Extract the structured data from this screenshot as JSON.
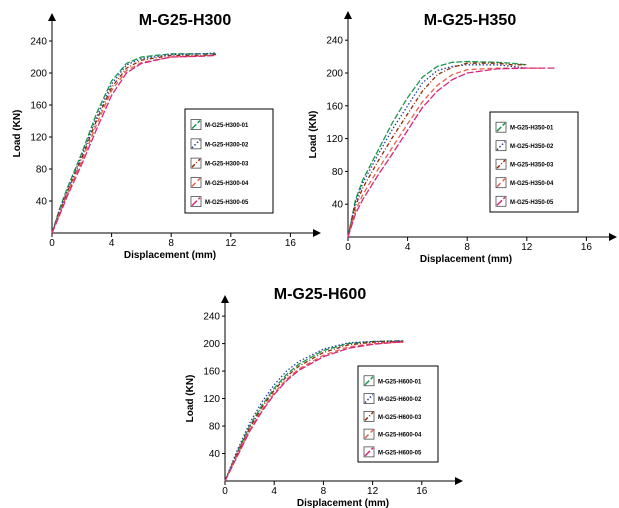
{
  "chart_data": [
    {
      "type": "line",
      "title": "M-G25-H300",
      "xlabel": "Displacement (mm)",
      "ylabel": "Load (KN)",
      "xlim": [
        0,
        17
      ],
      "ylim": [
        0,
        260
      ],
      "xticks": [
        "0",
        "4",
        "8",
        "12",
        "16"
      ],
      "yticks": [
        "40",
        "80",
        "120",
        "160",
        "200",
        "240"
      ],
      "legend": "inside-right",
      "series": [
        {
          "name": "M-G25-H300-01",
          "color": "#1a9850",
          "dash": "6 2",
          "x": [
            0,
            0.5,
            1,
            2,
            3,
            4,
            5,
            6,
            8,
            10,
            11
          ],
          "y": [
            0,
            30,
            55,
            100,
            150,
            190,
            212,
            220,
            224,
            224,
            224
          ]
        },
        {
          "name": "M-G25-H300-02",
          "color": "#2c3e9c",
          "dash": "1.5 2",
          "x": [
            0,
            0.5,
            1,
            2,
            3,
            4,
            5,
            6,
            8,
            10,
            11
          ],
          "y": [
            0,
            28,
            52,
            97,
            145,
            186,
            210,
            218,
            223,
            224,
            225
          ]
        },
        {
          "name": "M-G25-H300-03",
          "color": "#8c2d04",
          "dash": "4 2 1 2",
          "x": [
            0,
            0.5,
            1,
            2,
            3,
            4,
            5,
            6,
            8,
            10,
            11
          ],
          "y": [
            0,
            26,
            50,
            94,
            141,
            182,
            206,
            216,
            222,
            222,
            223
          ]
        },
        {
          "name": "M-G25-H300-04",
          "color": "#e8604c",
          "dash": "5 3",
          "x": [
            0,
            0.5,
            1,
            2,
            3,
            4,
            5,
            6,
            8,
            10,
            11
          ],
          "y": [
            0,
            24,
            48,
            90,
            136,
            178,
            203,
            213,
            220,
            221,
            222
          ]
        },
        {
          "name": "M-G25-H300-05",
          "color": "#d6277d",
          "dash": "7 2",
          "x": [
            0,
            0.5,
            1,
            2,
            3,
            4,
            5,
            6,
            8,
            10,
            11
          ],
          "y": [
            0,
            22,
            45,
            86,
            130,
            172,
            200,
            212,
            220,
            221,
            222
          ]
        }
      ]
    },
    {
      "type": "line",
      "title": "M-G25-H350",
      "xlabel": "Displacement (mm)",
      "ylabel": "Load (KN)",
      "xlim": [
        0,
        17
      ],
      "ylim": [
        0,
        260
      ],
      "xticks": [
        "0",
        "4",
        "8",
        "12",
        "16"
      ],
      "yticks": [
        "40",
        "80",
        "120",
        "160",
        "200",
        "240"
      ],
      "legend": "inside-right",
      "series": [
        {
          "name": "M-G25-H350-01",
          "color": "#1a9850",
          "dash": "6 2",
          "x": [
            0,
            0.5,
            1,
            2,
            3,
            4,
            5,
            6,
            7,
            8,
            10,
            11,
            12
          ],
          "y": [
            0,
            45,
            70,
            105,
            140,
            170,
            195,
            208,
            213,
            214,
            213,
            212,
            210
          ]
        },
        {
          "name": "M-G25-H350-02",
          "color": "#2c3e9c",
          "dash": "1.5 2",
          "x": [
            0,
            0.5,
            1,
            2,
            3,
            4,
            5,
            6,
            7,
            8,
            10,
            11,
            12
          ],
          "y": [
            0,
            42,
            66,
            100,
            132,
            160,
            188,
            203,
            208,
            210,
            210,
            208,
            206
          ]
        },
        {
          "name": "M-G25-H350-03",
          "color": "#8c2d04",
          "dash": "4 2 1 2",
          "x": [
            0,
            0.5,
            1,
            2,
            3,
            4,
            5,
            6,
            7,
            8,
            10,
            11,
            12
          ],
          "y": [
            0,
            38,
            60,
            92,
            122,
            150,
            178,
            198,
            207,
            212,
            212,
            210,
            210
          ]
        },
        {
          "name": "M-G25-H350-04",
          "color": "#e8604c",
          "dash": "5 3",
          "x": [
            0,
            0.5,
            1,
            2,
            3,
            4,
            5,
            6,
            7,
            8,
            10,
            12,
            13
          ],
          "y": [
            0,
            32,
            52,
            82,
            110,
            138,
            165,
            185,
            198,
            204,
            206,
            206,
            206
          ]
        },
        {
          "name": "M-G25-H350-05",
          "color": "#d6277d",
          "dash": "7 2",
          "x": [
            0,
            0.5,
            1,
            2,
            3,
            4,
            5,
            6,
            7,
            8,
            10,
            12,
            14
          ],
          "y": [
            0,
            28,
            46,
            75,
            102,
            130,
            158,
            178,
            192,
            200,
            205,
            206,
            206
          ]
        }
      ]
    },
    {
      "type": "line",
      "title": "M-G25-H600",
      "xlabel": "Displacement (mm)",
      "ylabel": "Load (KN)",
      "xlim": [
        0,
        19
      ],
      "ylim": [
        0,
        260
      ],
      "xticks": [
        "0",
        "4",
        "8",
        "12",
        "16"
      ],
      "yticks": [
        "40",
        "80",
        "120",
        "160",
        "200",
        "240"
      ],
      "legend": "inside-right",
      "series": [
        {
          "name": "M-G25-H600-01",
          "color": "#1a9850",
          "dash": "6 2",
          "x": [
            0,
            1,
            2,
            3,
            4,
            5,
            6,
            8,
            10,
            12,
            14,
            14.5
          ],
          "y": [
            0,
            42,
            80,
            110,
            135,
            155,
            170,
            190,
            200,
            203,
            204,
            204
          ]
        },
        {
          "name": "M-G25-H600-02",
          "color": "#2c3e9c",
          "dash": "1.5 2",
          "x": [
            0,
            1,
            2,
            3,
            4,
            5,
            6,
            8,
            10,
            12,
            14,
            14.5
          ],
          "y": [
            0,
            45,
            84,
            115,
            140,
            160,
            174,
            192,
            201,
            203,
            204,
            204
          ]
        },
        {
          "name": "M-G25-H600-03",
          "color": "#8c2d04",
          "dash": "4 2 1 2",
          "x": [
            0,
            1,
            2,
            3,
            4,
            5,
            6,
            8,
            10,
            12,
            14,
            14.5
          ],
          "y": [
            0,
            40,
            77,
            107,
            132,
            152,
            167,
            187,
            198,
            202,
            203,
            203
          ]
        },
        {
          "name": "M-G25-H600-04",
          "color": "#e8604c",
          "dash": "5 3",
          "x": [
            0,
            1,
            2,
            3,
            4,
            5,
            6,
            8,
            10,
            12,
            14,
            14.5
          ],
          "y": [
            0,
            38,
            74,
            103,
            128,
            148,
            163,
            183,
            195,
            200,
            202,
            202
          ]
        },
        {
          "name": "M-G25-H600-05",
          "color": "#d6277d",
          "dash": "7 2",
          "x": [
            0,
            1,
            2,
            3,
            4,
            5,
            6,
            8,
            10,
            12,
            14,
            14.5
          ],
          "y": [
            0,
            36,
            72,
            101,
            126,
            146,
            161,
            181,
            193,
            199,
            202,
            202
          ]
        }
      ]
    }
  ]
}
